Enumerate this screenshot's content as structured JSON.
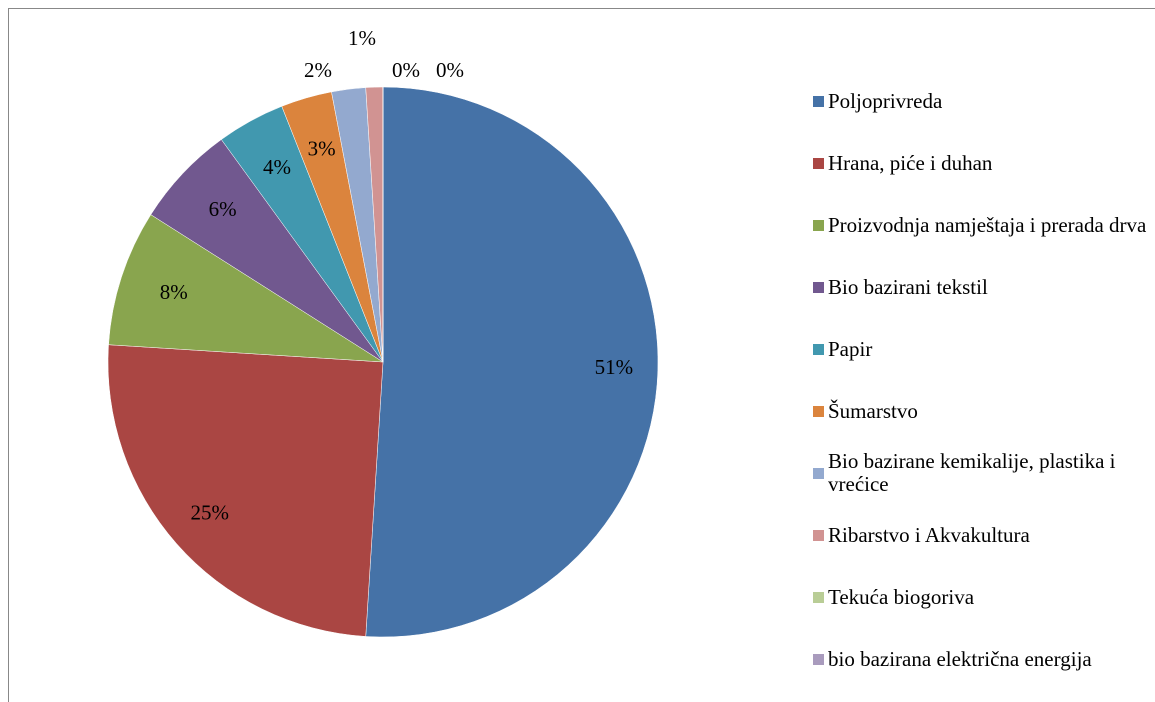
{
  "chart_data": {
    "type": "pie",
    "categories": [
      "Poljoprivreda",
      "Hrana, piće i duhan",
      "Proizvodnja namještaja i prerada drva",
      "Bio bazirani tekstil",
      "Papir",
      "Šumarstvo",
      "Bio bazirane kemikalije, plastika i vrećice",
      "Ribarstvo i Akvakultura",
      "Tekuća biogoriva",
      "bio bazirana električna energija"
    ],
    "values": [
      51,
      25,
      8,
      6,
      4,
      3,
      2,
      1,
      0,
      0
    ],
    "value_labels": [
      "51%",
      "25%",
      "8%",
      "6%",
      "4%",
      "3%",
      "2%",
      "1%",
      "0%",
      "0%"
    ],
    "colors": [
      "#4572a7",
      "#aa4643",
      "#89a54e",
      "#71588f",
      "#4198af",
      "#db843d",
      "#93a9cf",
      "#d19392",
      "#b9cd96",
      "#a99bbd"
    ],
    "legend": "right"
  }
}
